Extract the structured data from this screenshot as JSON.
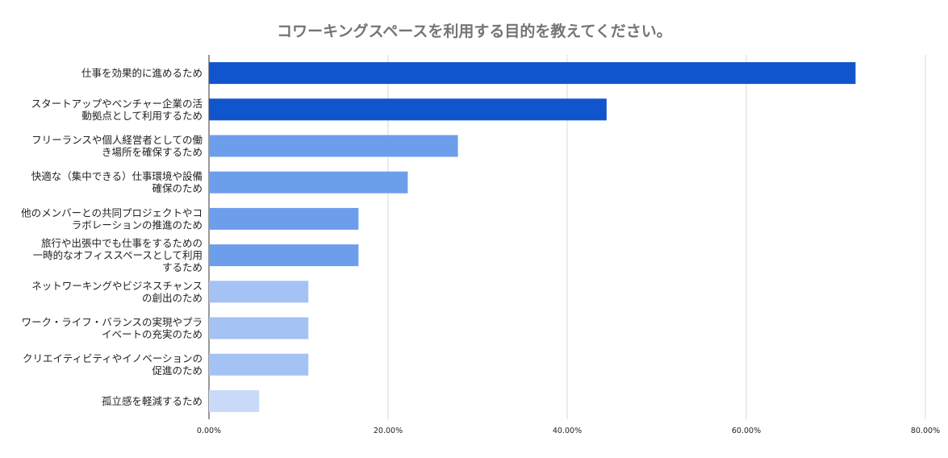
{
  "chart_data": {
    "type": "bar",
    "orientation": "horizontal",
    "title": "コワーキングスペースを利用する目的を教えてください。",
    "xlabel": "",
    "ylabel": "",
    "xlim": [
      0,
      80
    ],
    "x_ticks": [
      "0.00%",
      "20.00%",
      "40.00%",
      "60.00%",
      "80.00%"
    ],
    "grid": true,
    "categories": [
      [
        "仕事を効果的に進めるため"
      ],
      [
        "スタートアップやベンチャー企業の活",
        "動拠点として利用するため"
      ],
      [
        "フリーランスや個人経営者としての働",
        "き場所を確保するため"
      ],
      [
        "快適な（集中できる）仕事環境や設備",
        "確保のため"
      ],
      [
        "他のメンバーとの共同プロジェクトやコ",
        "ラボレーションの推進のため"
      ],
      [
        "旅行や出張中でも仕事をするための",
        "一時的なオフィススペースとして利用",
        "するため"
      ],
      [
        "ネットワーキングやビジネスチャンス",
        "の創出のため"
      ],
      [
        "ワーク・ライフ・バランスの実現やプラ",
        "イベートの充実のため"
      ],
      [
        "クリエイティビティやイノベーションの",
        "促進のため"
      ],
      [
        "孤立感を軽減するため"
      ]
    ],
    "values": [
      72.2,
      44.4,
      27.8,
      22.2,
      16.7,
      16.7,
      11.1,
      11.1,
      11.1,
      5.6
    ],
    "colors": [
      "#1155cc",
      "#1155cc",
      "#6d9eeb",
      "#6d9eeb",
      "#6d9eeb",
      "#6d9eeb",
      "#a4c2f4",
      "#a4c2f4",
      "#a4c2f4",
      "#c9daf8"
    ]
  }
}
